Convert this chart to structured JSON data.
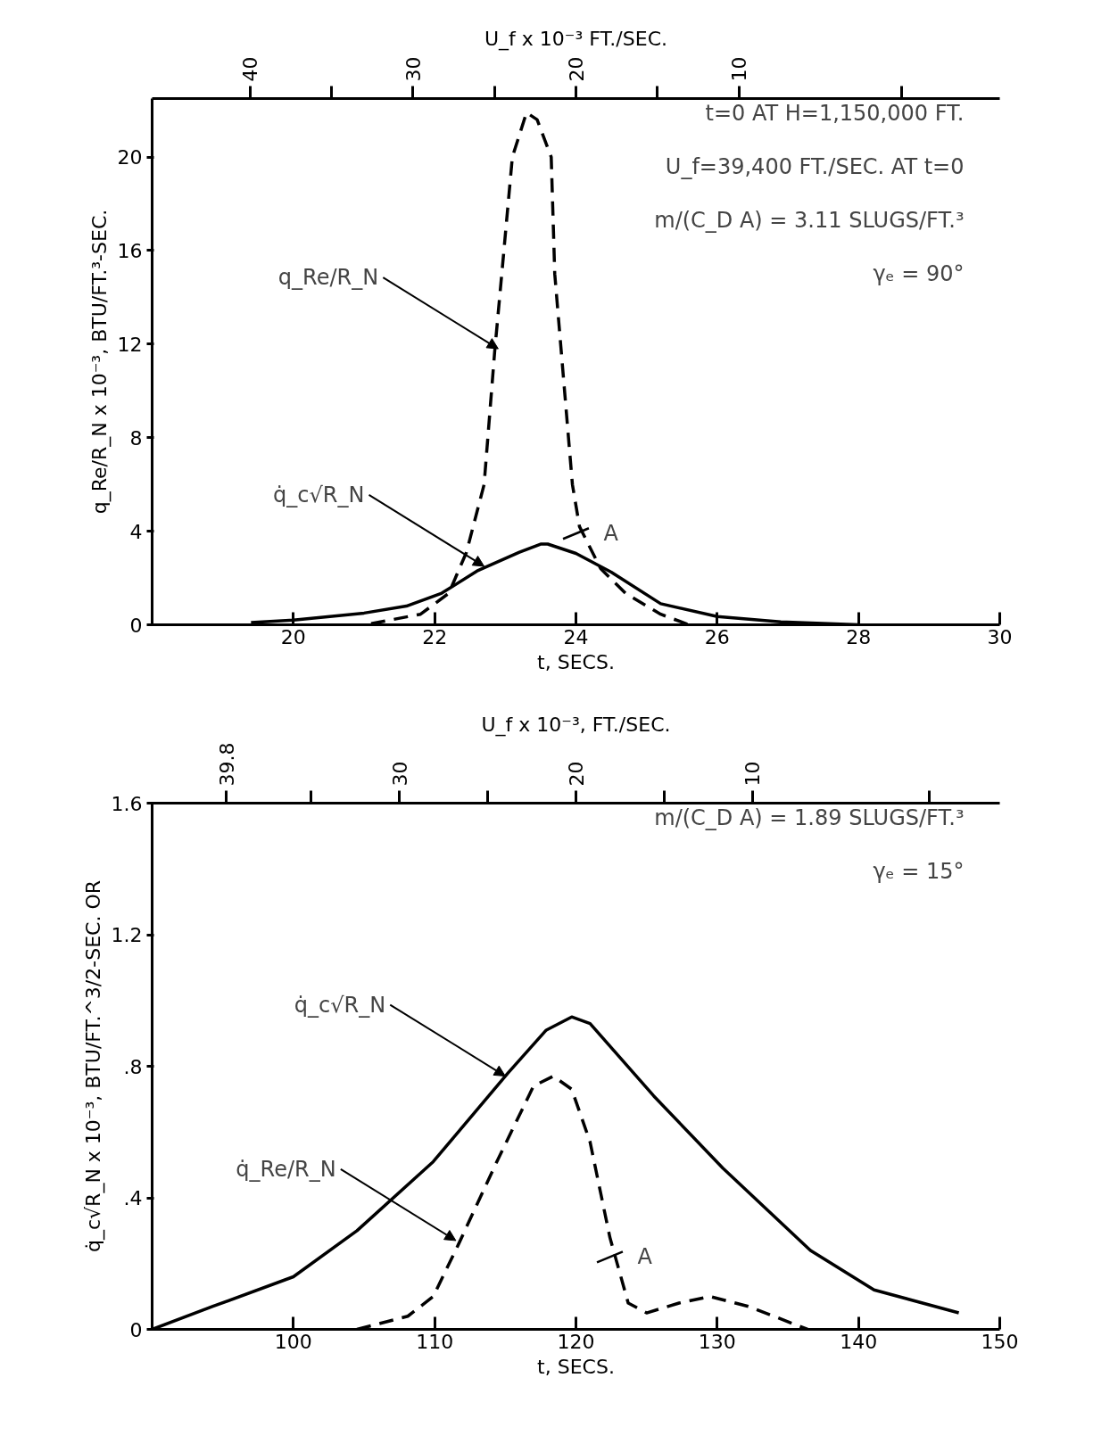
{
  "chart_data": [
    {
      "type": "line",
      "xlabel": "t, SECS.",
      "ylabel": "q_Re/R_N x 10⁻³, BTU/FT.³-SEC.",
      "x2label": "U_f x 10⁻³ FT./SEC.",
      "xlim": [
        18,
        30
      ],
      "xticks": [
        20,
        22,
        24,
        26,
        28,
        30
      ],
      "ylim": [
        0,
        22.5
      ],
      "yticks": [
        0,
        4,
        8,
        12,
        16,
        20
      ],
      "x2lim": [
        46,
        -6
      ],
      "x2ticks": [
        40,
        {
          "value": 35,
          "label": null
        },
        30,
        {
          "value": 25,
          "label": null
        },
        20,
        {
          "value": 15,
          "label": null
        },
        10,
        {
          "value": 0,
          "label": null
        }
      ],
      "series": [
        {
          "color": "#000000",
          "line_style": "solid",
          "x": [
            19.4,
            20,
            21,
            21.6,
            22.1,
            22.6,
            23.2,
            23.5,
            23.6,
            24,
            24.5,
            25.2,
            26,
            26.9,
            28
          ],
          "values": [
            0.1,
            0.2,
            0.5,
            0.8,
            1.35,
            2.3,
            3.1,
            3.45,
            3.45,
            3.05,
            2.25,
            0.9,
            0.35,
            0.12,
            0
          ]
        },
        {
          "color": "#000000",
          "line_style": "dashed",
          "x": [
            21.1,
            21.8,
            22.2,
            22.45,
            22.7,
            22.85,
            22.95,
            23.1,
            23.3,
            23.45,
            23.65,
            23.7,
            23.8,
            23.95,
            24.05,
            24.35,
            24.7,
            25.2,
            25.6
          ],
          "values": [
            0.05,
            0.45,
            1.35,
            3.1,
            6,
            11.7,
            15,
            20,
            21.9,
            21.6,
            20,
            15,
            11.4,
            6,
            4.2,
            2.4,
            1.35,
            0.45,
            0
          ]
        }
      ],
      "annotations": [
        {
          "text": "q_Re/R_N",
          "x": 22.9,
          "y": 11.8
        },
        {
          "text": "q̇_c√R_N",
          "x": 22.7,
          "y": 2.5
        },
        {
          "text": "A",
          "x": 24.0,
          "y": 3.9
        },
        "t=0 AT H=1,150,000 FT.",
        "U_f=39,400 FT./SEC. AT t=0",
        "m/(C_D A) = 3.11 SLUGS/FT.³",
        "γₑ = 90°"
      ]
    },
    {
      "type": "line",
      "xlabel": "t, SECS.",
      "ylabel": "q̇_c√R_N x 10⁻³, BTU/FT.^3/2-SEC. OR",
      "x2label": "U_f x 10⁻³, FT./SEC.",
      "xlim": [
        90,
        150
      ],
      "xticks": [
        100,
        110,
        120,
        130,
        140,
        150
      ],
      "ylim": [
        0,
        1.6
      ],
      "yticks": [
        0,
        {
          "value": 0.4,
          "label": ".4"
        },
        {
          "value": 0.8,
          "label": ".8"
        },
        {
          "value": 1.2,
          "label": "1.2"
        },
        {
          "value": 1.6,
          "label": "1.6"
        }
      ],
      "x2lim": [
        44,
        -4
      ],
      "x2ticks": [
        39.8,
        {
          "value": 35,
          "label": null
        },
        30,
        {
          "value": 25,
          "label": null
        },
        20,
        {
          "value": 15,
          "label": null
        },
        10,
        {
          "value": 0,
          "label": null
        }
      ],
      "series": [
        {
          "color": "#000000",
          "line_style": "solid",
          "x": [
            90,
            94.3,
            100,
            104.5,
            109.9,
            115.2,
            117.9,
            119.7,
            121,
            125.5,
            130.4,
            136.6,
            141.1,
            147.1
          ],
          "values": [
            0,
            0.07,
            0.16,
            0.3,
            0.51,
            0.78,
            0.91,
            0.95,
            0.93,
            0.71,
            0.49,
            0.24,
            0.12,
            0.05
          ]
        },
        {
          "color": "#000000",
          "line_style": "dashed",
          "x": [
            104.5,
            108.1,
            109.9,
            111.7,
            114.4,
            117,
            118.4,
            119.7,
            121,
            122.4,
            123.7,
            125,
            127.3,
            129.5,
            132.2,
            136.4
          ],
          "values": [
            0,
            0.04,
            0.1,
            0.26,
            0.51,
            0.74,
            0.77,
            0.73,
            0.57,
            0.28,
            0.08,
            0.05,
            0.08,
            0.1,
            0.07,
            0
          ]
        }
      ],
      "annotations": [
        {
          "text": "q̇_c√R_N",
          "x": 115.0,
          "y": 0.77
        },
        {
          "text": "q̇_Re/R_N",
          "x": 111.5,
          "y": 0.27
        },
        {
          "text": "A",
          "x": 122.4,
          "y": 0.22
        },
        "m/(C_D A) = 1.89 SLUGS/FT.³",
        "γₑ = 15°"
      ]
    }
  ]
}
